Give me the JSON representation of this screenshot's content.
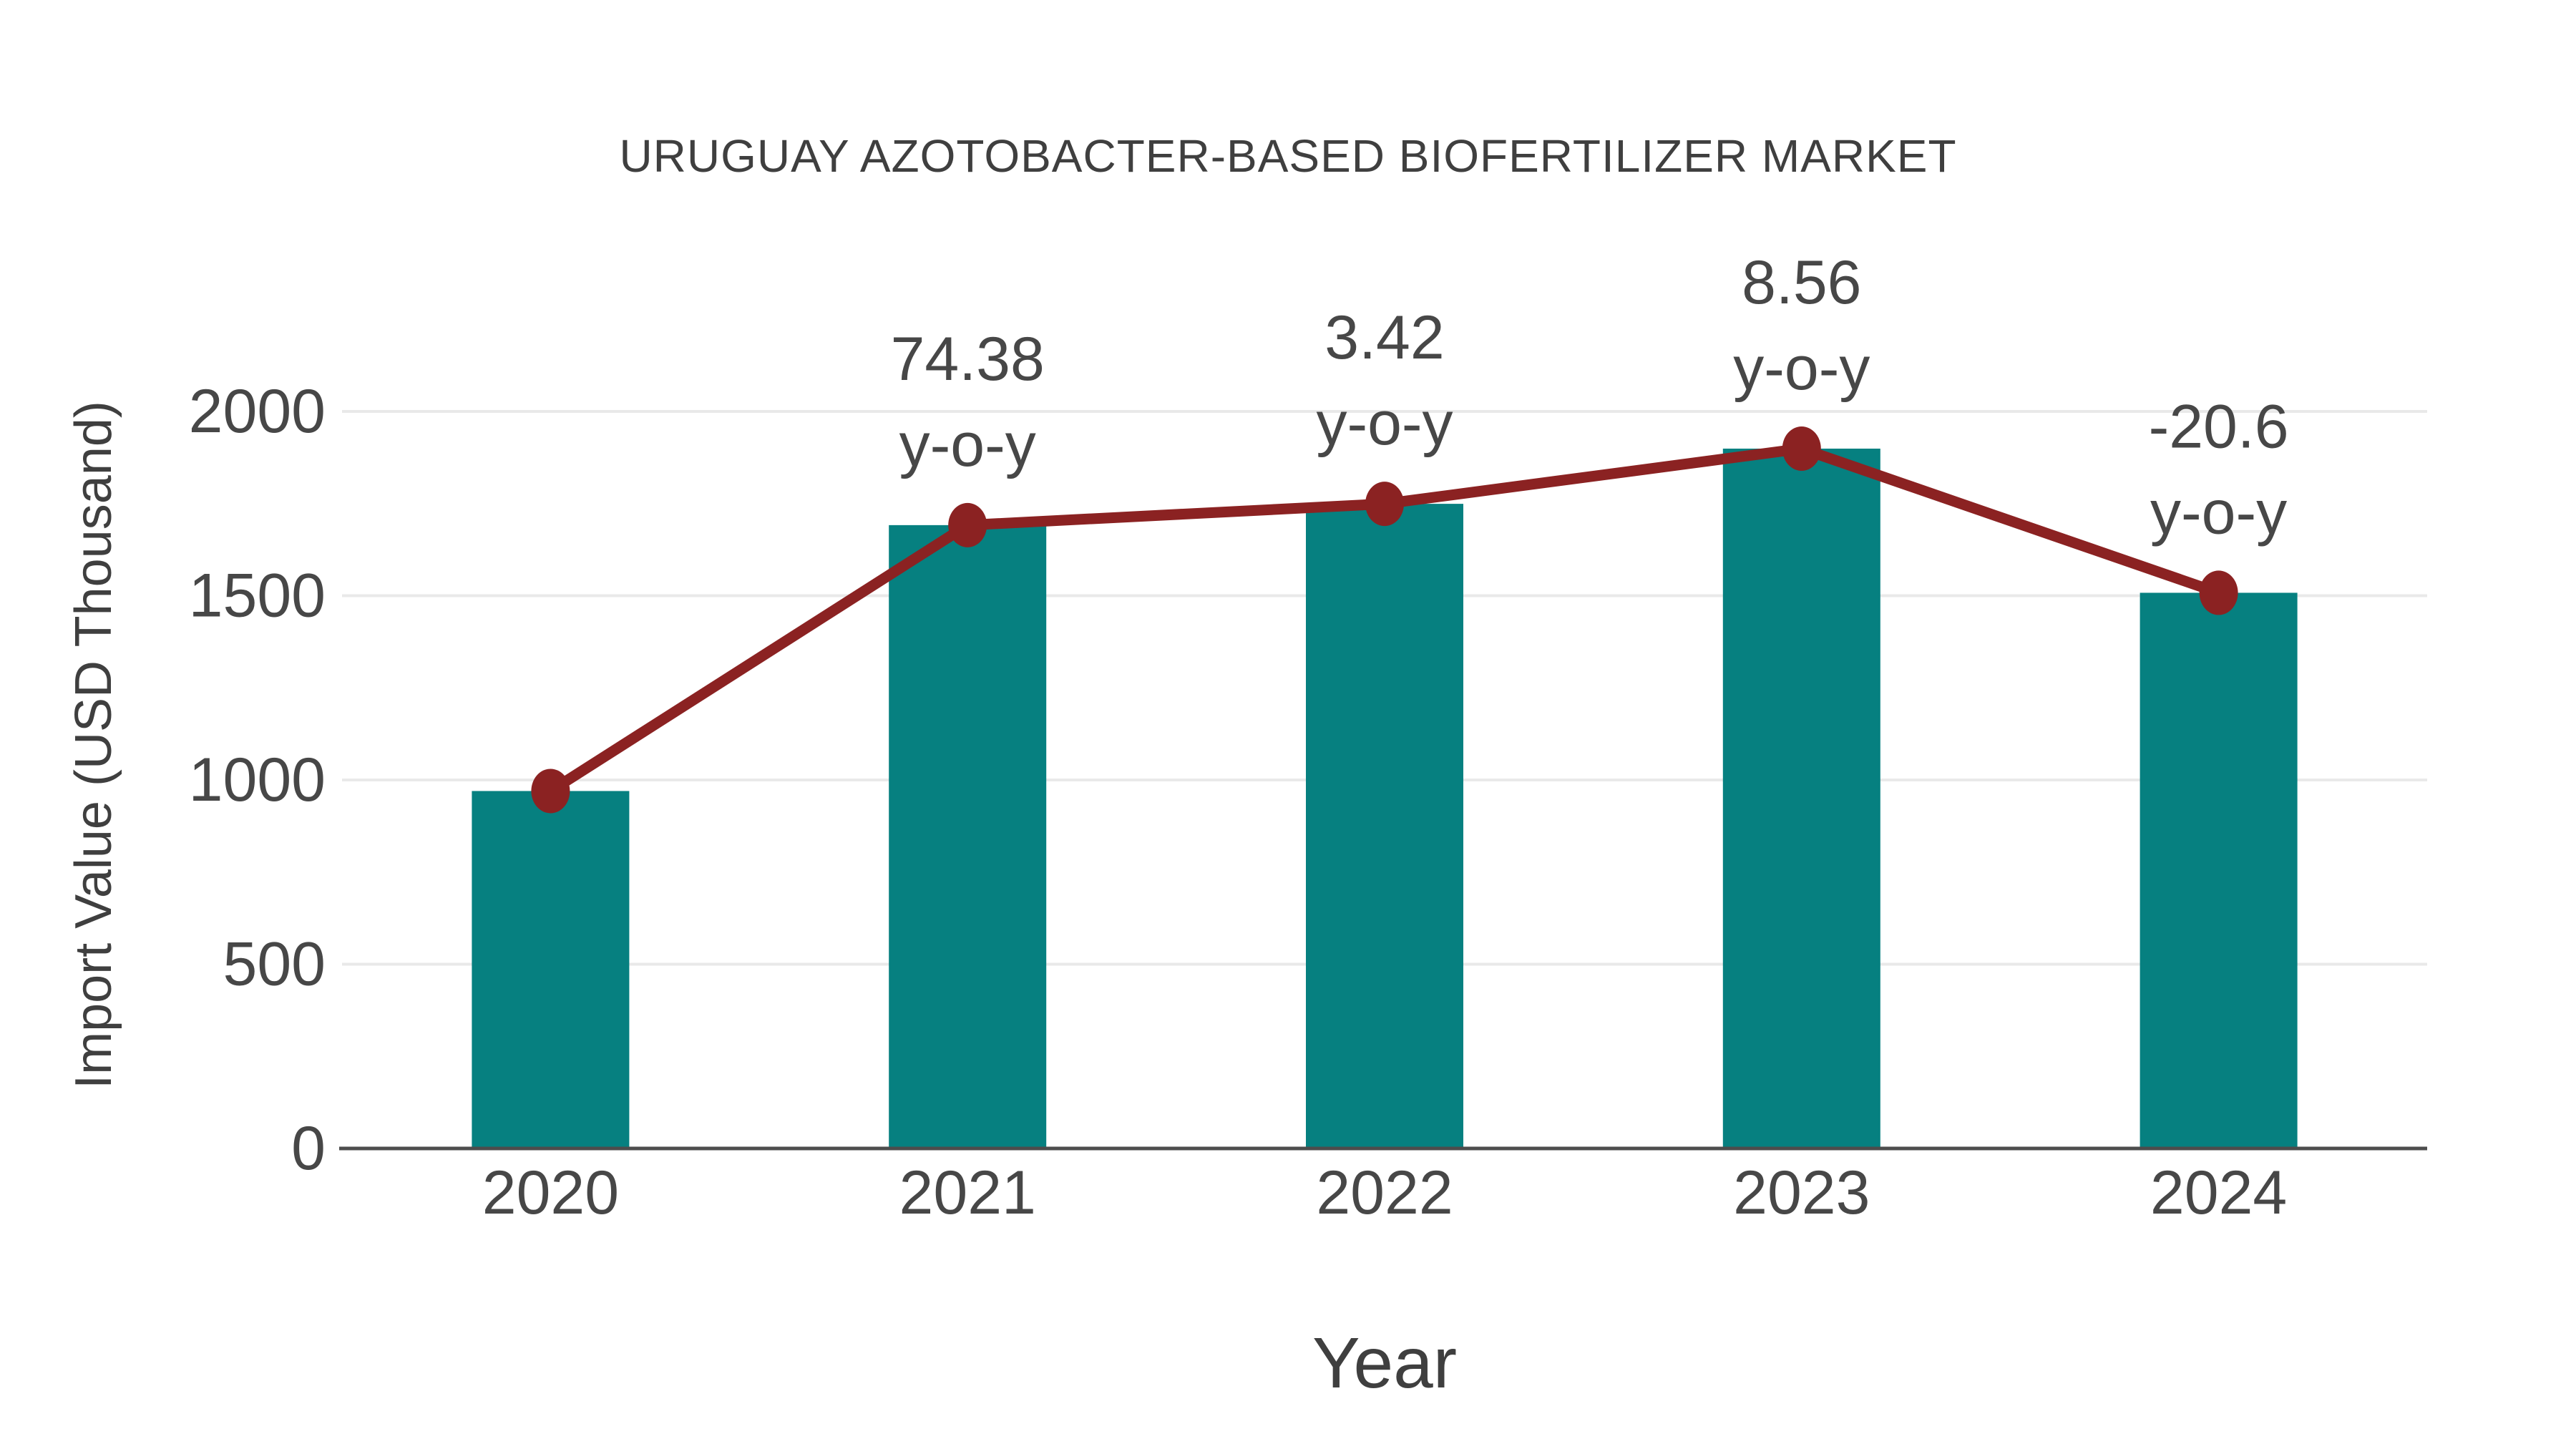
{
  "chart_data": {
    "type": "bar",
    "title": "URUGUAY AZOTOBACTER-BASED BIOFERTILIZER MARKET",
    "xlabel": "Year",
    "ylabel": "Import Value (USD Thousand)",
    "categories": [
      "2020",
      "2021",
      "2022",
      "2023",
      "2024"
    ],
    "series": [
      {
        "name": "Import Value bars",
        "type": "bar",
        "color": "#068080",
        "values": [
          970,
          1691.5,
          1749.3,
          1899.1,
          1507.9
        ]
      },
      {
        "name": "Import Value trend line",
        "type": "line",
        "color": "#8b2222",
        "values": [
          970,
          1691.5,
          1749.3,
          1899.1,
          1507.9
        ]
      }
    ],
    "yoy_annotations": [
      {
        "category": "2021",
        "value_label": "74.38",
        "unit_label": "y-o-y"
      },
      {
        "category": "2022",
        "value_label": "3.42",
        "unit_label": "y-o-y"
      },
      {
        "category": "2023",
        "value_label": "8.56",
        "unit_label": "y-o-y"
      },
      {
        "category": "2024",
        "value_label": "-20.6",
        "unit_label": "y-o-y"
      }
    ],
    "y_ticks": [
      0,
      500,
      1000,
      1500,
      2000
    ],
    "ylim": [
      0,
      2000
    ],
    "grid": "horizontal-lines",
    "legend_position": "none",
    "colors": {
      "bar": "#068080",
      "line": "#8b2222",
      "text": "#474747",
      "title_text": "#3f3f3f",
      "grid": "#e9e9e9",
      "axis": "#4d4d4d",
      "background": "#ffffff"
    }
  }
}
